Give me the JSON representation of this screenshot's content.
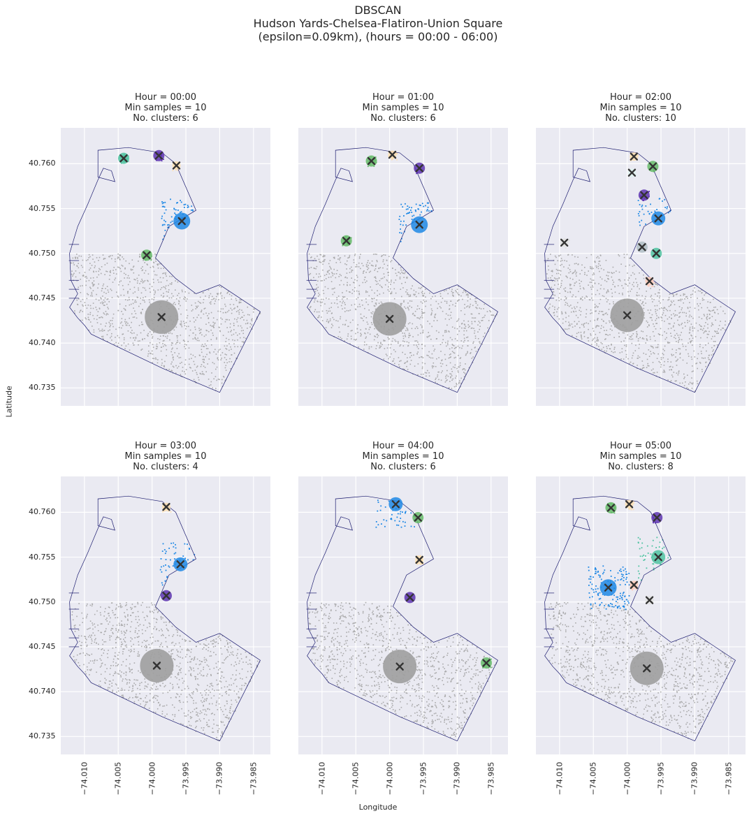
{
  "figure": {
    "suptitle": [
      "DBSCAN",
      "Hudson Yards-Chelsea-Flatiron-Union Square",
      "(epsilon=0.09km), (hours = 00:00 - 06:00)"
    ],
    "xlabel": "Longitude",
    "ylabel": "Latitude",
    "colors": {
      "background": "#EAEAF2",
      "grid": "#FFFFFF",
      "boundary": "#1a1a6e",
      "noise": "#9e9e9e"
    }
  },
  "chart_data": [
    {
      "type": "scatter",
      "title": [
        "Hour = 00:00",
        "Min samples = 10",
        "No. clusters: 6"
      ],
      "xlim": [
        -74.0135,
        -73.9825
      ],
      "ylim": [
        40.733,
        40.764
      ],
      "xticks": [
        -74.01,
        -74.005,
        -74.0,
        -73.995,
        -73.99,
        -73.985
      ],
      "yticks": [
        40.735,
        40.74,
        40.745,
        40.75,
        40.755,
        40.76
      ],
      "xtick_labels": [
        "−74.010",
        "−74.005",
        "−74.000",
        "−73.995",
        "−73.990",
        "−73.985"
      ],
      "ytick_labels": [
        "40.735",
        "40.740",
        "40.745",
        "40.750",
        "40.755",
        "40.760"
      ],
      "centroids": [
        {
          "x": -73.9986,
          "y": 40.7429,
          "size": "xlarge",
          "color": "#9e9e9e"
        },
        {
          "x": -73.9956,
          "y": 40.7536,
          "size": "large",
          "color": "#1e88e5"
        },
        {
          "x": -74.0042,
          "y": 40.7606,
          "size": "small",
          "color": "#4fc3a1"
        },
        {
          "x": -73.999,
          "y": 40.7609,
          "size": "small",
          "color": "#5e35b1"
        },
        {
          "x": -73.9964,
          "y": 40.7598,
          "size": "tiny",
          "color": "#ffe0b2"
        },
        {
          "x": -74.0008,
          "y": 40.7498,
          "size": "small",
          "color": "#66bb6a"
        }
      ]
    },
    {
      "type": "scatter",
      "title": [
        "Hour = 01:00",
        "Min samples = 10",
        "No. clusters: 6"
      ],
      "xlim": [
        -74.0135,
        -73.9825
      ],
      "ylim": [
        40.733,
        40.764
      ],
      "xticks": [
        -74.01,
        -74.005,
        -74.0,
        -73.995,
        -73.99,
        -73.985
      ],
      "yticks": [
        40.735,
        40.74,
        40.745,
        40.75,
        40.755,
        40.76
      ],
      "centroids": [
        {
          "x": -74.0,
          "y": 40.7427,
          "size": "xlarge",
          "color": "#9e9e9e"
        },
        {
          "x": -73.9956,
          "y": 40.7532,
          "size": "large",
          "color": "#1e88e5"
        },
        {
          "x": -74.0027,
          "y": 40.7603,
          "size": "small",
          "color": "#66bb6a"
        },
        {
          "x": -73.9996,
          "y": 40.761,
          "size": "tiny",
          "color": "#ffe0b2"
        },
        {
          "x": -73.9956,
          "y": 40.7595,
          "size": "small",
          "color": "#5e35b1"
        },
        {
          "x": -74.0064,
          "y": 40.7514,
          "size": "small",
          "color": "#66bb6a"
        }
      ]
    },
    {
      "type": "scatter",
      "title": [
        "Hour = 02:00",
        "Min samples = 10",
        "No. clusters: 10"
      ],
      "xlim": [
        -74.0135,
        -73.9825
      ],
      "ylim": [
        40.733,
        40.764
      ],
      "xticks": [
        -74.01,
        -74.005,
        -74.0,
        -73.995,
        -73.99,
        -73.985
      ],
      "yticks": [
        40.735,
        40.74,
        40.745,
        40.75,
        40.755,
        40.76
      ],
      "centroids": [
        {
          "x": -74.0,
          "y": 40.7431,
          "size": "xlarge",
          "color": "#9e9e9e"
        },
        {
          "x": -73.9954,
          "y": 40.7539,
          "size": "medium",
          "color": "#1e88e5"
        },
        {
          "x": -73.9975,
          "y": 40.7565,
          "size": "small",
          "color": "#5e35b1"
        },
        {
          "x": -73.999,
          "y": 40.7608,
          "size": "tiny",
          "color": "#ffe0b2"
        },
        {
          "x": -73.9962,
          "y": 40.7597,
          "size": "small",
          "color": "#66bb6a"
        },
        {
          "x": -73.9993,
          "y": 40.759,
          "size": "tiny",
          "color": "#e0f2f1"
        },
        {
          "x": -74.0093,
          "y": 40.7512,
          "size": "tiny",
          "color": "#e0e0e0"
        },
        {
          "x": -73.9978,
          "y": 40.7507,
          "size": "small",
          "color": "#b0bec5"
        },
        {
          "x": -73.9957,
          "y": 40.75,
          "size": "small",
          "color": "#4fc3a1"
        },
        {
          "x": -73.9967,
          "y": 40.7469,
          "size": "tiny",
          "color": "#ffccbc"
        }
      ]
    },
    {
      "type": "scatter",
      "title": [
        "Hour = 03:00",
        "Min samples = 10",
        "No. clusters: 4"
      ],
      "xlim": [
        -74.0135,
        -73.9825
      ],
      "ylim": [
        40.733,
        40.764
      ],
      "xticks": [
        -74.01,
        -74.005,
        -74.0,
        -73.995,
        -73.99,
        -73.985
      ],
      "yticks": [
        40.735,
        40.74,
        40.745,
        40.75,
        40.755,
        40.76
      ],
      "centroids": [
        {
          "x": -73.9993,
          "y": 40.7429,
          "size": "xlarge",
          "color": "#9e9e9e"
        },
        {
          "x": -73.9958,
          "y": 40.7542,
          "size": "medium",
          "color": "#1e88e5"
        },
        {
          "x": -73.9979,
          "y": 40.7507,
          "size": "small",
          "color": "#5e35b1"
        },
        {
          "x": -73.9979,
          "y": 40.7606,
          "size": "tiny",
          "color": "#ffe0b2"
        }
      ]
    },
    {
      "type": "scatter",
      "title": [
        "Hour = 04:00",
        "Min samples = 10",
        "No. clusters: 6"
      ],
      "xlim": [
        -74.0135,
        -73.9825
      ],
      "ylim": [
        40.733,
        40.764
      ],
      "xticks": [
        -74.01,
        -74.005,
        -74.0,
        -73.995,
        -73.99,
        -73.985
      ],
      "yticks": [
        40.735,
        40.74,
        40.745,
        40.75,
        40.755,
        40.76
      ],
      "centroids": [
        {
          "x": -73.9985,
          "y": 40.7428,
          "size": "xlarge",
          "color": "#9e9e9e"
        },
        {
          "x": -73.9991,
          "y": 40.7609,
          "size": "medium",
          "color": "#1e88e5"
        },
        {
          "x": -73.9958,
          "y": 40.7594,
          "size": "small",
          "color": "#66bb6a"
        },
        {
          "x": -73.9956,
          "y": 40.7547,
          "size": "tiny",
          "color": "#ffe0b2"
        },
        {
          "x": -73.997,
          "y": 40.7505,
          "size": "small",
          "color": "#5e35b1"
        },
        {
          "x": -73.9857,
          "y": 40.7432,
          "size": "small",
          "color": "#66bb6a"
        }
      ]
    },
    {
      "type": "scatter",
      "title": [
        "Hour = 05:00",
        "Min samples = 10",
        "No. clusters: 8"
      ],
      "xlim": [
        -74.0135,
        -73.9825
      ],
      "ylim": [
        40.733,
        40.764
      ],
      "xticks": [
        -74.01,
        -74.005,
        -74.0,
        -73.995,
        -73.99,
        -73.985
      ],
      "yticks": [
        40.735,
        40.74,
        40.745,
        40.75,
        40.755,
        40.76
      ],
      "xtick_labels": [
        "−74.010",
        "−74.005",
        "−74.000",
        "−73.995",
        "−73.990",
        "−73.985"
      ],
      "centroids": [
        {
          "x": -73.9971,
          "y": 40.7426,
          "size": "xlarge",
          "color": "#9e9e9e"
        },
        {
          "x": -74.0028,
          "y": 40.7516,
          "size": "large",
          "color": "#1e88e5"
        },
        {
          "x": -73.9954,
          "y": 40.755,
          "size": "medium",
          "color": "#4fc3a1"
        },
        {
          "x": -74.0024,
          "y": 40.7605,
          "size": "small",
          "color": "#66bb6a"
        },
        {
          "x": -73.9997,
          "y": 40.7609,
          "size": "tiny",
          "color": "#ffe0b2"
        },
        {
          "x": -73.9956,
          "y": 40.7594,
          "size": "small",
          "color": "#5e35b1"
        },
        {
          "x": -73.999,
          "y": 40.7519,
          "size": "tiny",
          "color": "#ffccbc"
        },
        {
          "x": -73.9967,
          "y": 40.7502,
          "size": "tiny",
          "color": "#e0e0e0"
        }
      ]
    }
  ]
}
